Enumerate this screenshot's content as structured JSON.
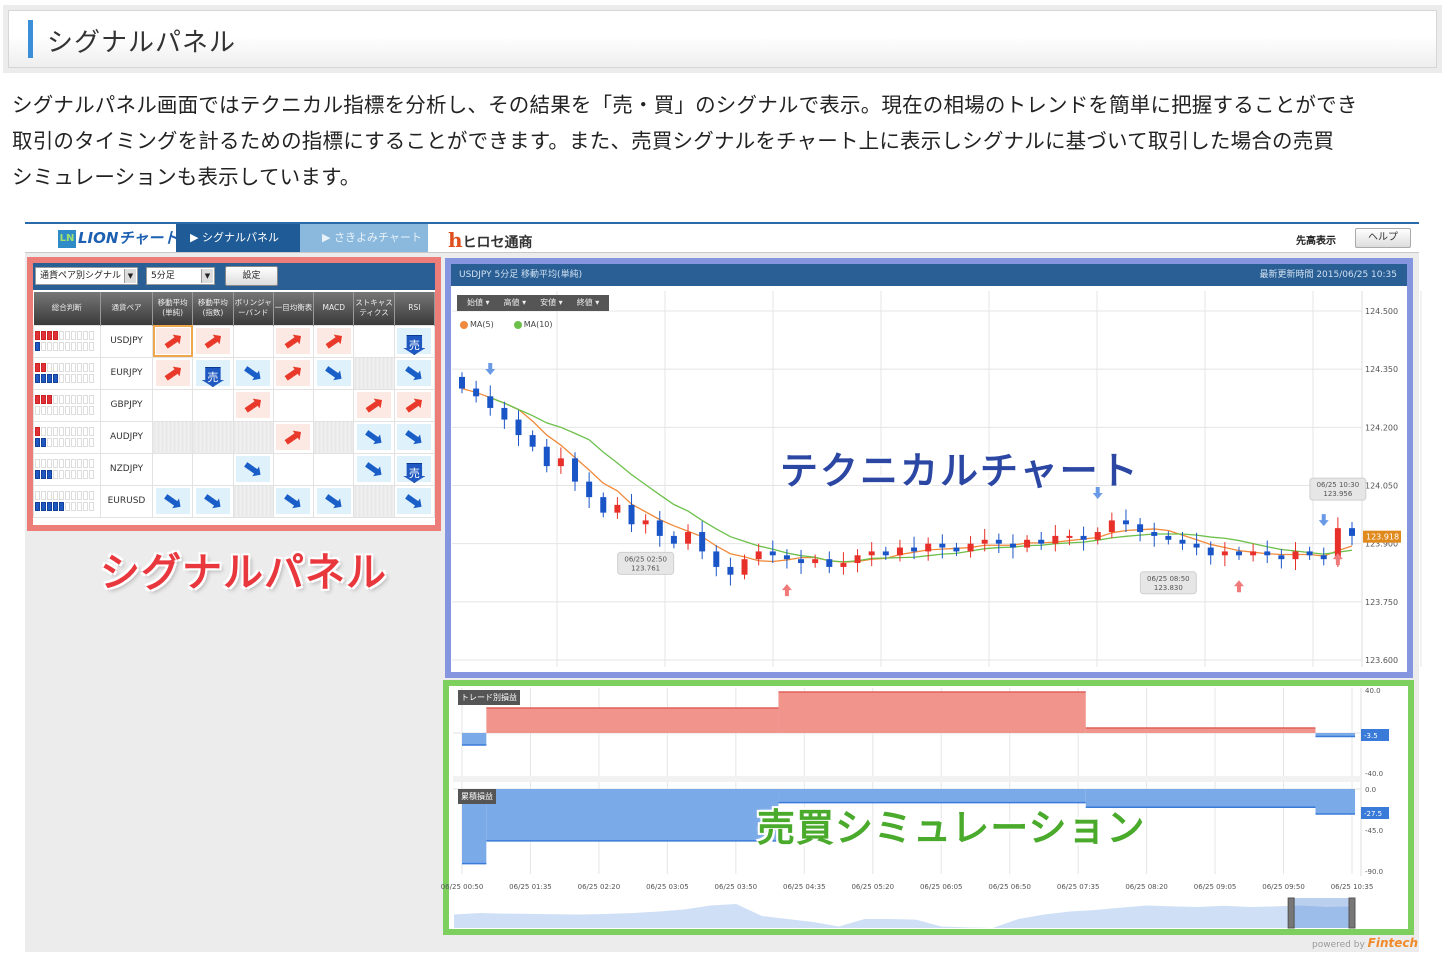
{
  "section": {
    "title": "シグナルパネル",
    "accent": "#3a8fd8"
  },
  "description": [
    "シグナルパネル画面ではテクニカル指標を分析し、その結果を「売・買」のシグナルで表示。現在の相場のトレンドを簡単に把握することができ",
    "取引のタイミングを計るための指標にすることができます。また、売買シグナルをチャート上に表示しシグナルに基づいて取引した場合の売買",
    "シミュレーションも表示しています。"
  ],
  "app": {
    "logo": "LIONチャート",
    "tabs": [
      {
        "label": "▶ シグナルパネル",
        "active": true
      },
      {
        "label": "▶ さきよみチャート",
        "active": false
      }
    ],
    "brand": "ヒロセ通商",
    "brand_mark": "h",
    "sentaka": "先高表示",
    "help": "ヘルプ",
    "powered_by": "powered by",
    "powered_brand": "Fintech"
  },
  "signal_panel": {
    "callout": "シグナルパネル",
    "selects": [
      {
        "value": "通貨ペア別シグナル"
      },
      {
        "value": "5分足"
      }
    ],
    "set_button": "設定",
    "columns": [
      "総合判断",
      "通貨ペア",
      "移動平均(単純)",
      "移動平均(指数)",
      "ボリンジャーバンド",
      "一目均衡表",
      "MACD",
      "ストキャスティクス",
      "RSI"
    ],
    "rows": [
      {
        "pair": "USDJPY",
        "buy_strength": 4,
        "sell_strength": 1,
        "signals": [
          "buy",
          "buy",
          "none",
          "buy",
          "buy",
          "none",
          "strong_sell"
        ],
        "selected": 0
      },
      {
        "pair": "EURJPY",
        "buy_strength": 2,
        "sell_strength": 4,
        "signals": [
          "buy",
          "strong_sell",
          "sell",
          "buy",
          "sell",
          "na",
          "sell"
        ]
      },
      {
        "pair": "GBPJPY",
        "buy_strength": 3,
        "sell_strength": 0,
        "signals": [
          "none",
          "none",
          "buy",
          "none",
          "none",
          "buy",
          "buy"
        ]
      },
      {
        "pair": "AUDJPY",
        "buy_strength": 1,
        "sell_strength": 2,
        "signals": [
          "na",
          "na",
          "na",
          "buy",
          "na",
          "sell",
          "sell"
        ]
      },
      {
        "pair": "NZDJPY",
        "buy_strength": 0,
        "sell_strength": 3,
        "signals": [
          "none",
          "none",
          "sell",
          "none",
          "none",
          "sell",
          "strong_sell"
        ]
      },
      {
        "pair": "EURUSD",
        "buy_strength": 0,
        "sell_strength": 5,
        "signals": [
          "sell",
          "sell",
          "na",
          "sell",
          "sell",
          "na",
          "sell"
        ]
      }
    ],
    "strong_sell_glyph": "売",
    "strength_max": 10,
    "colors": {
      "buy": "#e8392a",
      "sell": "#1a5fc8",
      "border": "#ec7d78"
    }
  },
  "technical_chart": {
    "callout": "テクニカルチャート",
    "header_left": "USDJPY  5分足  移動平均(単純)",
    "header_right": "最新更新時間  2015/06/25 10:35",
    "price_tabs": [
      "始値 ▾",
      "高値 ▾",
      "安値 ▾",
      "終値 ▾"
    ],
    "legend": [
      {
        "name": "MA(5)",
        "color": "#f08a3c",
        "period": 5
      },
      {
        "name": "MA(10)",
        "color": "#6cc04a",
        "period": 10
      }
    ],
    "y_ticks": [
      "124.500",
      "124.350",
      "124.200",
      "124.050",
      "123.900",
      "123.750",
      "123.600"
    ],
    "ylim": [
      123.6,
      124.5
    ],
    "closes": [
      124.3,
      124.28,
      124.25,
      124.22,
      124.18,
      124.15,
      124.1,
      124.12,
      124.06,
      124.02,
      123.98,
      124.0,
      123.95,
      123.96,
      123.92,
      123.9,
      123.93,
      123.88,
      123.84,
      123.82,
      123.86,
      123.88,
      123.87,
      123.86,
      123.85,
      123.86,
      123.84,
      123.85,
      123.87,
      123.88,
      123.87,
      123.89,
      123.88,
      123.9,
      123.89,
      123.88,
      123.9,
      123.91,
      123.9,
      123.89,
      123.91,
      123.9,
      123.92,
      123.92,
      123.91,
      123.93,
      123.96,
      123.95,
      123.93,
      123.92,
      123.91,
      123.9,
      123.89,
      123.87,
      123.88,
      123.87,
      123.88,
      123.87,
      123.86,
      123.88,
      123.87,
      123.86,
      123.94,
      123.92
    ],
    "first_open": 124.33,
    "signals": [
      {
        "type": "sell",
        "candle": 2
      },
      {
        "type": "buy",
        "candle": 23
      },
      {
        "type": "sell",
        "candle": 45
      },
      {
        "type": "buy",
        "candle": 55
      },
      {
        "type": "sell",
        "candle": 61
      },
      {
        "type": "buy",
        "candle": 62
      }
    ],
    "annotations": [
      {
        "time": "06/25 02:50",
        "price": "123.761",
        "candle": 13
      },
      {
        "time": "06/25 08:50",
        "price": "123.830",
        "candle": 50
      },
      {
        "time": "06/25 10:30",
        "price": "123.956",
        "candle": 62
      }
    ],
    "current_price": "123.918",
    "colors": {
      "up": "#e8302a",
      "down": "#1a55c8",
      "border": "#8595e0",
      "current_tag": "#e08a1e"
    }
  },
  "simulation": {
    "callout": "売買シミュレーション",
    "trade_pl": {
      "label": "トレード別損益",
      "ticks": [
        "40.0",
        "-40.0"
      ],
      "current": "-3.5",
      "segments": [
        {
          "start": "00:50",
          "end": "01:06",
          "value": -12
        },
        {
          "start": "01:06",
          "end": "04:18",
          "value": 25
        },
        {
          "start": "04:18",
          "end": "07:40",
          "value": 41
        },
        {
          "start": "07:40",
          "end": "10:11",
          "value": 5
        },
        {
          "start": "10:11",
          "end": "10:37",
          "value": -3.5
        }
      ]
    },
    "cumulative_pl": {
      "label": "累積損益",
      "ticks": [
        "0.0",
        "-45.0",
        "-90.0"
      ],
      "current": "-27.5",
      "segments": [
        {
          "start": "00:50",
          "end": "01:06",
          "value": -82
        },
        {
          "start": "01:06",
          "end": "04:18",
          "value": -57
        },
        {
          "start": "04:18",
          "end": "07:40",
          "value": -15
        },
        {
          "start": "07:40",
          "end": "10:11",
          "value": -20
        },
        {
          "start": "10:11",
          "end": "10:37",
          "value": -27.5
        }
      ]
    },
    "time_labels": [
      "06/25 00:50",
      "06/25 01:35",
      "06/25 02:20",
      "06/25 03:05",
      "06/25 03:50",
      "06/25 04:35",
      "06/25 05:20",
      "06/25 06:05",
      "06/25 06:50",
      "06/25 07:35",
      "06/25 08:20",
      "06/25 09:05",
      "06/25 09:50",
      "06/25 10:35"
    ],
    "navigator": {
      "levels": [
        0.45,
        0.5,
        0.48,
        0.47,
        0.46,
        0.45,
        0.47,
        0.5,
        0.55,
        0.62,
        0.75,
        0.8,
        0.4,
        0.3,
        0.2,
        0.05,
        0.3,
        0.3,
        0.28,
        0.05,
        0.02,
        0.0,
        0.3,
        0.45,
        0.55,
        0.6,
        0.68,
        0.75,
        0.72,
        0.7,
        0.74,
        0.7,
        0.72,
        0.75,
        0.7,
        0.72
      ],
      "range": [
        "09:55",
        "10:35"
      ]
    },
    "colors": {
      "profit": "#f0948c",
      "loss": "#7aaae8",
      "border": "#7ed05e"
    }
  }
}
